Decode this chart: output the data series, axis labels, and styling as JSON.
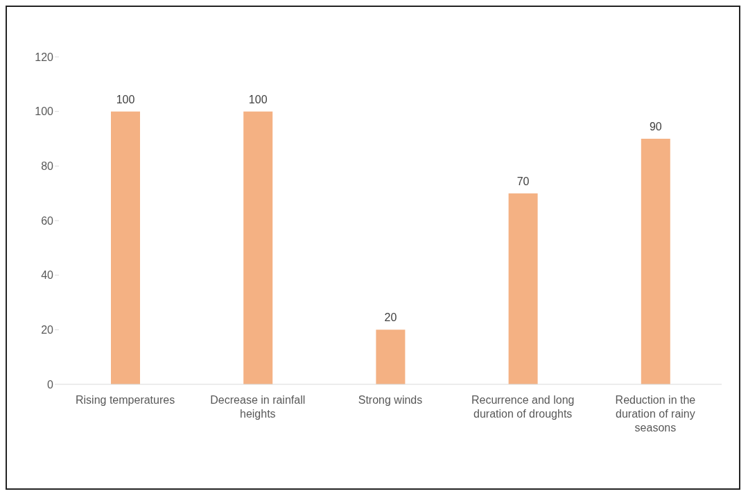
{
  "chart_data": {
    "type": "bar",
    "categories": [
      "Rising temperatures",
      "Decrease in rainfall heights",
      "Strong winds",
      "Recurrence and long duration of droughts",
      "Reduction in the duration of rainy seasons"
    ],
    "values": [
      100,
      100,
      20,
      70,
      90
    ],
    "color": "#f4b183",
    "ylim": [
      0,
      120
    ],
    "yticks": [
      0,
      20,
      40,
      60,
      80,
      100,
      120
    ],
    "grid": false,
    "legend": false,
    "data_labels": true
  }
}
